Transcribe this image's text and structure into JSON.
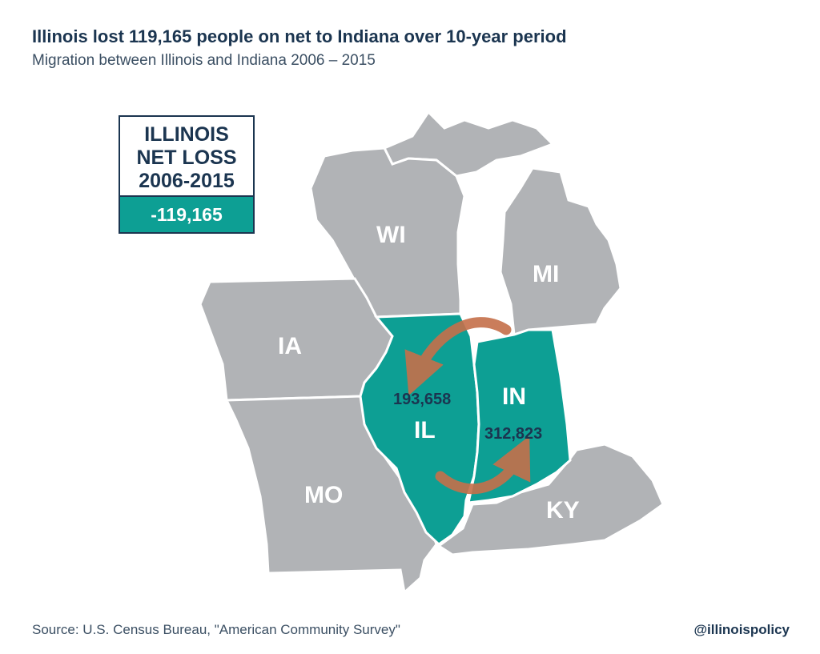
{
  "header": {
    "title": "Illinois lost 119,165 people on net to Indiana over 10-year period",
    "subtitle": "Migration between Illinois and Indiana 2006 – 2015"
  },
  "netbox": {
    "line1": "ILLINOIS",
    "line2": "NET LOSS",
    "line3": "2006-2015",
    "value": "-119,165"
  },
  "map": {
    "states": {
      "wi": "WI",
      "mi": "MI",
      "ia": "IA",
      "il": "IL",
      "in": "IN",
      "mo": "MO",
      "ky": "KY"
    },
    "flows": {
      "indiana_to_illinois": "193,658",
      "illinois_to_indiana": "312,823"
    },
    "colors": {
      "highlight": "#0d9f94",
      "other_states": "#b1b3b6",
      "arrow": "#c5704a",
      "text_dark": "#1b3550"
    }
  },
  "footer": {
    "source": "Source: U.S. Census Bureau, \"American Community Survey\"",
    "handle": "@illinoispolicy"
  }
}
